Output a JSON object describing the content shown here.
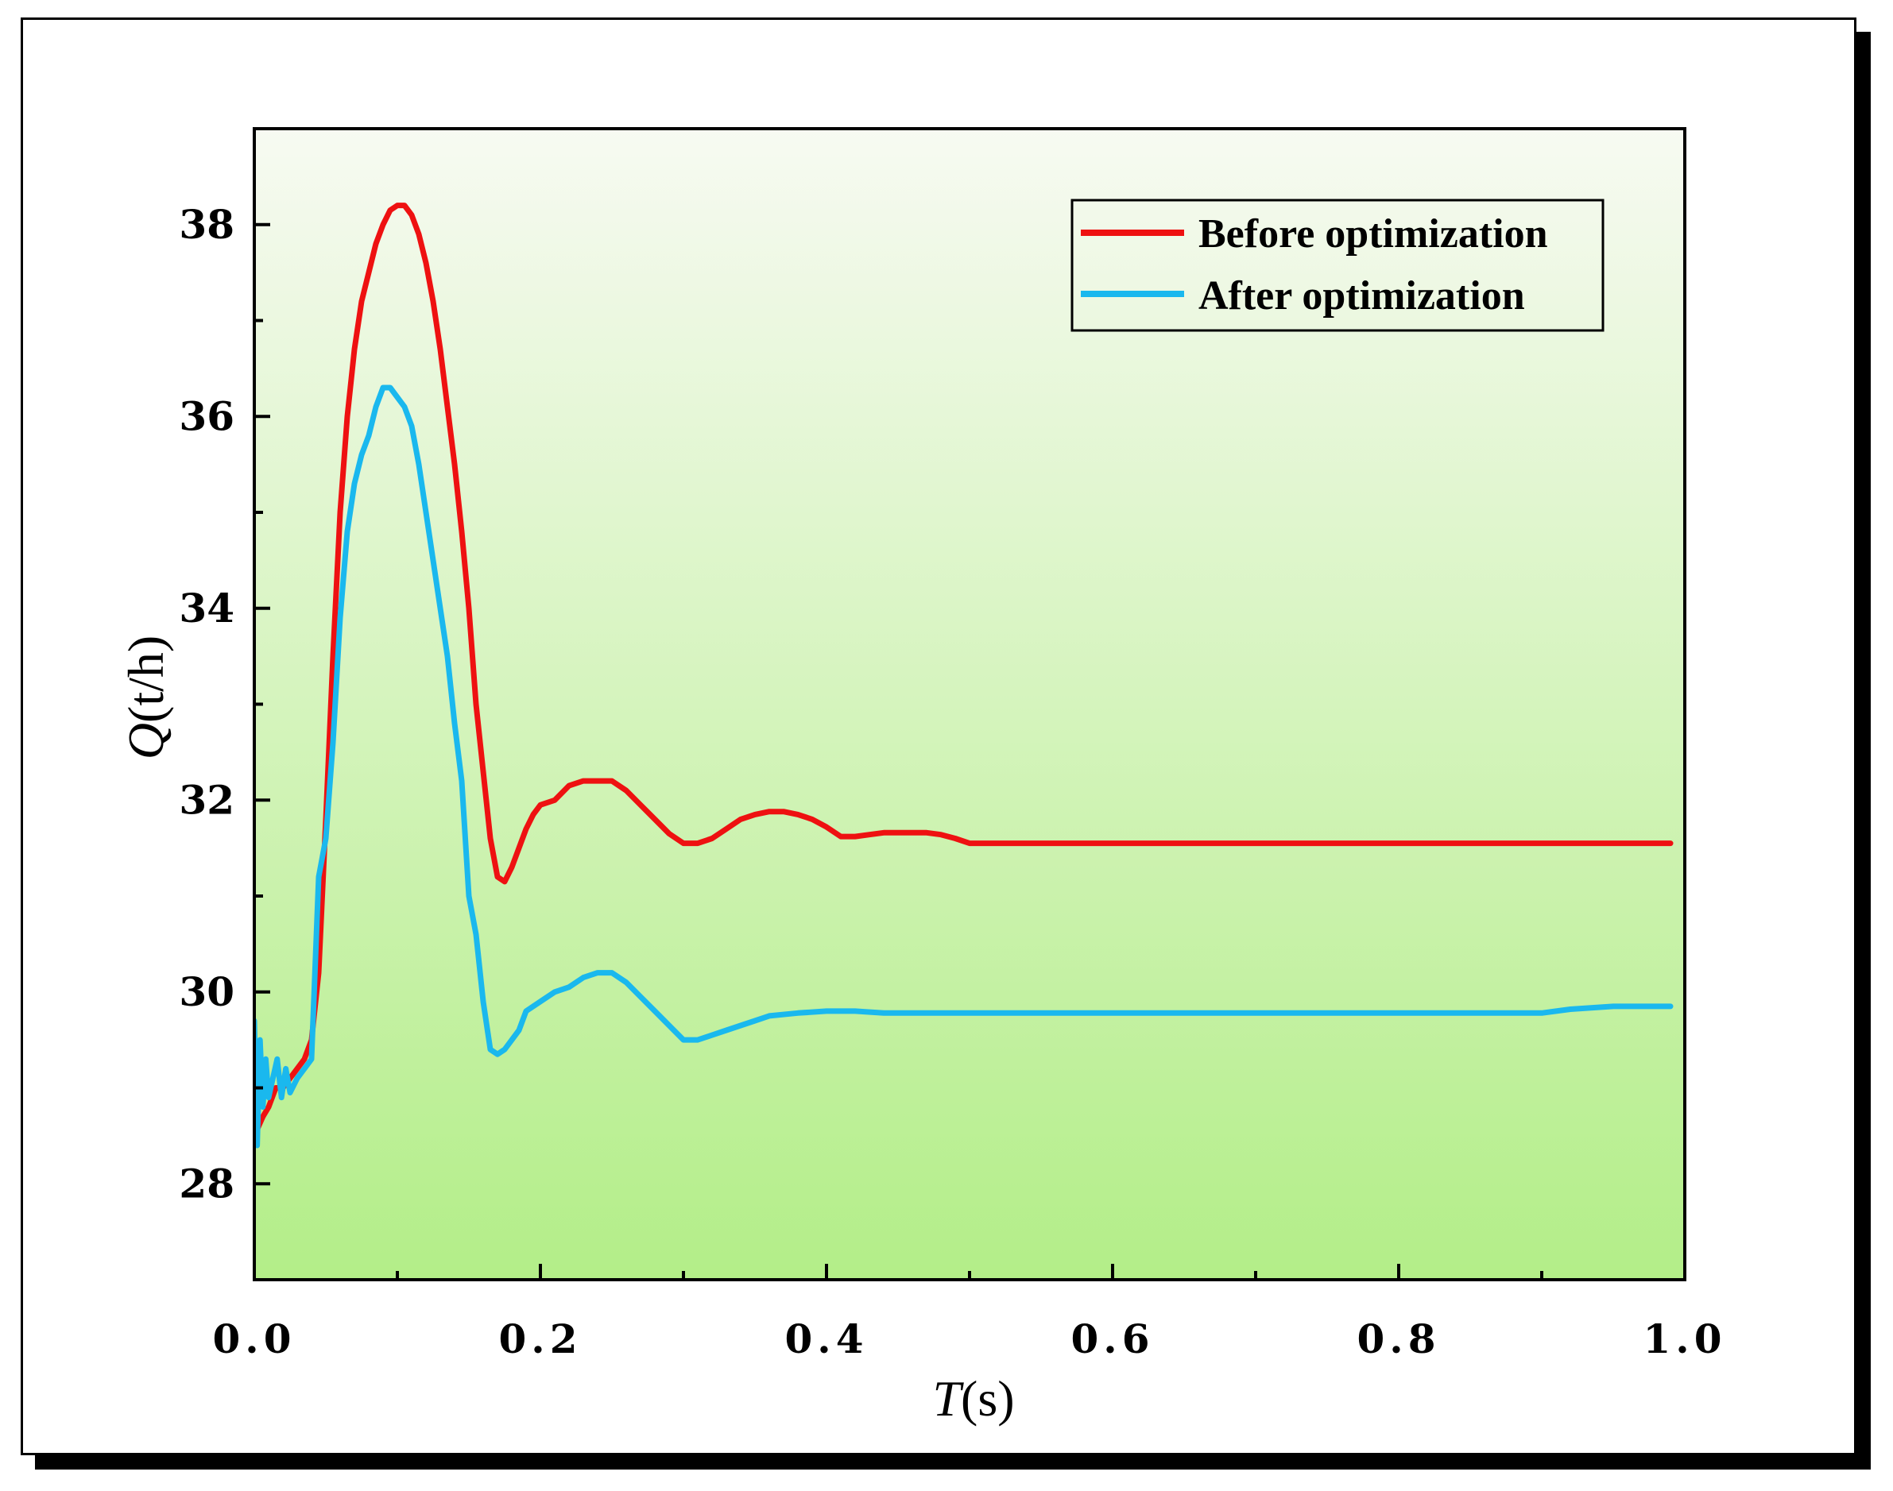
{
  "chart_data": {
    "type": "line",
    "title": "",
    "xlabel_var": "T",
    "xlabel_unit": "(s)",
    "ylabel_var": "Q",
    "ylabel_unit": "(t/h)",
    "xlim": [
      0.0,
      1.0
    ],
    "ylim": [
      27.0,
      39.0
    ],
    "x_ticks": [
      0.0,
      0.2,
      0.4,
      0.6,
      0.8,
      1.0
    ],
    "x_tick_labels": [
      "0.0",
      "0.2",
      "0.4",
      "0.6",
      "0.8",
      "1.0"
    ],
    "y_ticks": [
      28,
      30,
      32,
      34,
      36,
      38
    ],
    "y_tick_labels": [
      "28",
      "30",
      "32",
      "34",
      "36",
      "38"
    ],
    "legend_position": "top-right",
    "background_gradient": [
      "#f7faf2",
      "#b3ee88"
    ],
    "series": [
      {
        "name": "Before optimization",
        "color": "#ee1111",
        "x": [
          0.0,
          0.003,
          0.006,
          0.01,
          0.015,
          0.02,
          0.025,
          0.03,
          0.035,
          0.04,
          0.045,
          0.05,
          0.055,
          0.06,
          0.065,
          0.07,
          0.075,
          0.08,
          0.085,
          0.09,
          0.095,
          0.1,
          0.105,
          0.11,
          0.115,
          0.12,
          0.125,
          0.13,
          0.135,
          0.14,
          0.145,
          0.15,
          0.155,
          0.16,
          0.165,
          0.17,
          0.175,
          0.18,
          0.185,
          0.19,
          0.195,
          0.2,
          0.21,
          0.22,
          0.23,
          0.24,
          0.25,
          0.26,
          0.27,
          0.28,
          0.29,
          0.3,
          0.31,
          0.32,
          0.33,
          0.34,
          0.35,
          0.36,
          0.37,
          0.38,
          0.39,
          0.4,
          0.41,
          0.42,
          0.43,
          0.44,
          0.45,
          0.46,
          0.47,
          0.48,
          0.49,
          0.5,
          0.51,
          0.52,
          0.53,
          0.54,
          0.55,
          0.56,
          0.57,
          0.58,
          0.59,
          0.6,
          0.61,
          0.62,
          0.65,
          0.7,
          0.75,
          0.8,
          0.85,
          0.9,
          0.95,
          0.99
        ],
        "y": [
          28.5,
          28.6,
          28.7,
          28.8,
          29.0,
          29.0,
          29.1,
          29.2,
          29.3,
          29.5,
          30.2,
          31.8,
          33.5,
          35.0,
          36.0,
          36.7,
          37.2,
          37.5,
          37.8,
          38.0,
          38.15,
          38.2,
          38.2,
          38.1,
          37.9,
          37.6,
          37.2,
          36.7,
          36.1,
          35.5,
          34.8,
          34.0,
          33.0,
          32.3,
          31.6,
          31.2,
          31.15,
          31.3,
          31.5,
          31.7,
          31.85,
          31.95,
          32.0,
          32.15,
          32.2,
          32.2,
          32.2,
          32.1,
          31.95,
          31.8,
          31.65,
          31.55,
          31.55,
          31.6,
          31.7,
          31.8,
          31.85,
          31.88,
          31.88,
          31.85,
          31.8,
          31.72,
          31.62,
          31.62,
          31.64,
          31.66,
          31.66,
          31.66,
          31.66,
          31.64,
          31.6,
          31.55,
          31.55,
          31.55,
          31.55,
          31.55,
          31.55,
          31.55,
          31.55,
          31.55,
          31.55,
          31.55,
          31.55,
          31.55,
          31.55,
          31.55,
          31.55,
          31.55,
          31.55,
          31.55,
          31.55,
          31.55
        ]
      },
      {
        "name": "After optimization",
        "color": "#1ab8ee",
        "x": [
          0.0,
          0.002,
          0.004,
          0.006,
          0.008,
          0.01,
          0.013,
          0.016,
          0.019,
          0.022,
          0.025,
          0.03,
          0.035,
          0.04,
          0.045,
          0.05,
          0.055,
          0.06,
          0.065,
          0.07,
          0.075,
          0.08,
          0.085,
          0.09,
          0.095,
          0.1,
          0.105,
          0.11,
          0.115,
          0.12,
          0.125,
          0.13,
          0.135,
          0.14,
          0.145,
          0.15,
          0.155,
          0.16,
          0.165,
          0.17,
          0.175,
          0.18,
          0.185,
          0.19,
          0.2,
          0.21,
          0.22,
          0.23,
          0.24,
          0.25,
          0.26,
          0.27,
          0.28,
          0.29,
          0.3,
          0.31,
          0.32,
          0.33,
          0.34,
          0.35,
          0.36,
          0.38,
          0.4,
          0.42,
          0.44,
          0.45,
          0.46,
          0.5,
          0.55,
          0.6,
          0.65,
          0.7,
          0.75,
          0.8,
          0.85,
          0.9,
          0.92,
          0.95,
          0.99
        ],
        "y": [
          29.7,
          28.4,
          29.5,
          28.8,
          29.3,
          28.9,
          29.1,
          29.3,
          28.9,
          29.2,
          28.95,
          29.1,
          29.2,
          29.3,
          31.2,
          31.6,
          32.6,
          33.9,
          34.8,
          35.3,
          35.6,
          35.8,
          36.1,
          36.3,
          36.3,
          36.2,
          36.1,
          35.9,
          35.5,
          35.0,
          34.5,
          34.0,
          33.5,
          32.8,
          32.2,
          31.0,
          30.6,
          29.9,
          29.4,
          29.35,
          29.4,
          29.5,
          29.6,
          29.8,
          29.9,
          30.0,
          30.05,
          30.15,
          30.2,
          30.2,
          30.1,
          29.95,
          29.8,
          29.65,
          29.5,
          29.5,
          29.55,
          29.6,
          29.65,
          29.7,
          29.75,
          29.78,
          29.8,
          29.8,
          29.78,
          29.78,
          29.78,
          29.78,
          29.78,
          29.78,
          29.78,
          29.78,
          29.78,
          29.78,
          29.78,
          29.78,
          29.82,
          29.85,
          29.85
        ]
      }
    ]
  }
}
